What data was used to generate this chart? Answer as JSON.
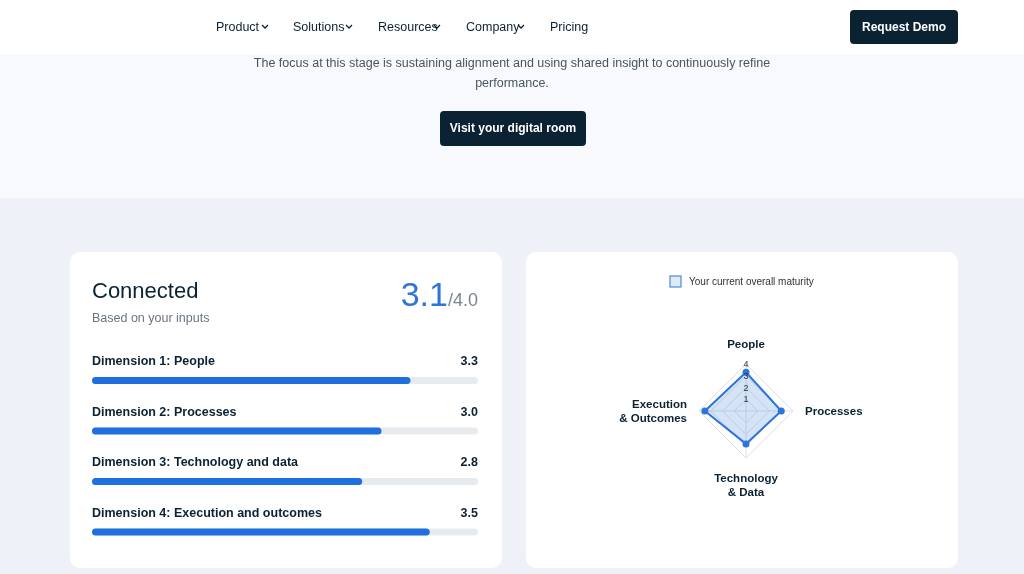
{
  "chart_data": [
    {
      "type": "other",
      "annotations": [
        "Product",
        "Solutions",
        "Resources",
        "Company",
        "Pricing",
        "Request Demo",
        "The focus at this stage is sustaining alignment and using shared insight to continuously refine performance.",
        "Visit your digital room"
      ]
    },
    {
      "type": "bar",
      "orientation": "horizontal",
      "title": "Connected",
      "subtitle": "Based on your inputs",
      "annotations": [
        "3.1",
        "/4.0"
      ],
      "categories": [
        "Dimension 1: People",
        "Dimension 2: Processes",
        "Dimension 3: Technology and data",
        "Dimension 4: Execution and outcomes"
      ],
      "values": [
        3.3,
        3.0,
        2.8,
        3.5
      ],
      "value_labels": [
        "3.3",
        "3.0",
        "2.8",
        "3.5"
      ],
      "color": "#1f6fde",
      "xlim": [
        0,
        4
      ]
    },
    {
      "type": "radar",
      "categories": [
        "People",
        "Processes",
        "Technology\n& Data",
        "Execution\n& Outcomes"
      ],
      "series": [
        {
          "name": "Your current overall maturity",
          "color": "#2f74d8",
          "values": [
            3.3,
            3.0,
            2.8,
            3.5
          ]
        }
      ],
      "ylim": [
        0,
        4
      ],
      "yticks": [
        1,
        2,
        3,
        4
      ],
      "legend": "top",
      "marker": "circle"
    }
  ]
}
